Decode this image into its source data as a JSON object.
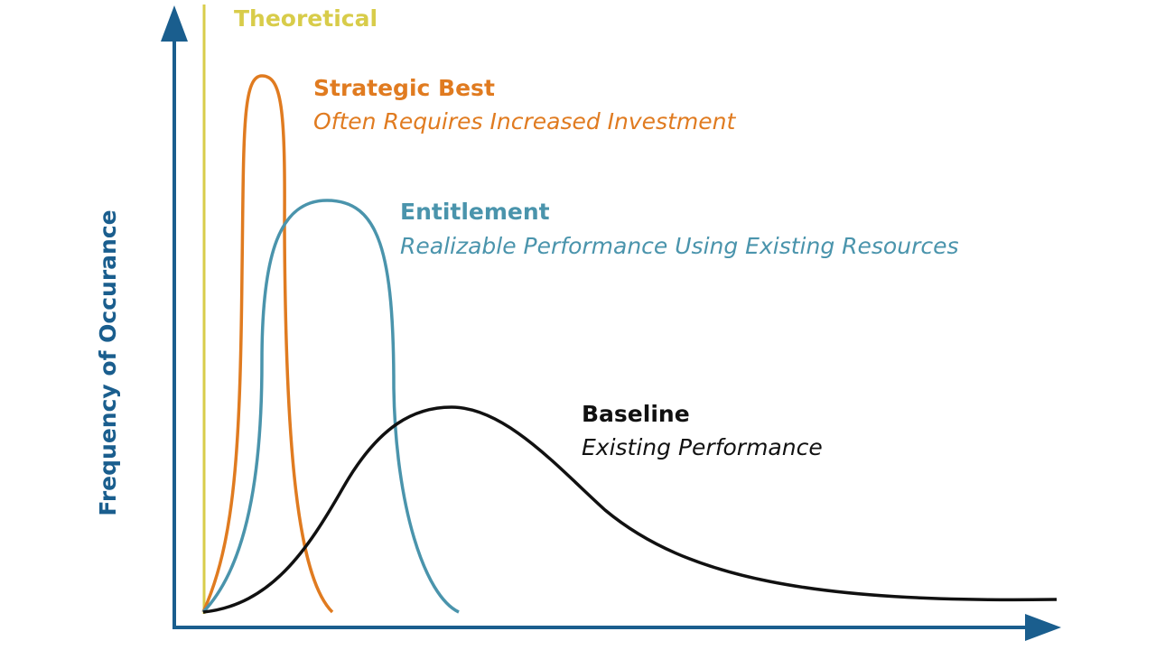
{
  "axis": {
    "y_label": "Frequency of Occurance"
  },
  "curves": [
    {
      "title": "Theoretical"
    },
    {
      "title": "Strategic Best",
      "subtitle": "Often Requires Increased Investment"
    },
    {
      "title": "Entitlement",
      "subtitle": "Realizable Performance Using Existing Resources"
    },
    {
      "title": "Baseline",
      "subtitle": "Existing Performance"
    }
  ]
}
